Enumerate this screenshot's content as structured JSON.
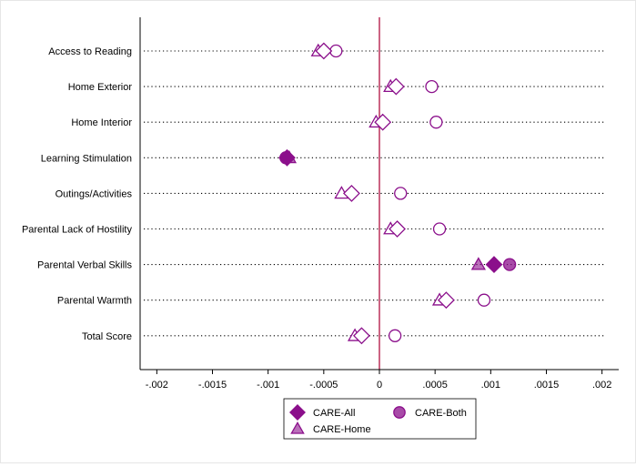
{
  "chart_data": {
    "type": "scatter",
    "categories": [
      "Access to Reading",
      "Home Exterior",
      "Home Interior",
      "Learning Stimulation",
      "Outings/Activities",
      "Parental Lack of Hostility",
      "Parental Verbal Skills",
      "Parental Warmth",
      "Total Score"
    ],
    "xlim": [
      -0.00215,
      0.00215
    ],
    "x_ticks": [
      -0.002,
      -0.0015,
      -0.001,
      -0.0005,
      0,
      0.0005,
      0.001,
      0.0015,
      0.002
    ],
    "x_tick_labels": [
      "-.002",
      "-.0015",
      "-.001",
      "-.0005",
      "0",
      ".0005",
      ".001",
      ".0015",
      ".002"
    ],
    "reference_line_x": 0,
    "grid": "dotted horizontal lines",
    "legend_position": "bottom",
    "series": [
      {
        "name": "CARE-All",
        "marker": "diamond",
        "values": [
          -0.0005,
          0.00015,
          3e-05,
          -0.00083,
          -0.00025,
          0.00016,
          0.00103,
          0.0006,
          -0.00016
        ],
        "filled": [
          false,
          false,
          false,
          true,
          false,
          false,
          true,
          false,
          false
        ]
      },
      {
        "name": "CARE-Both",
        "marker": "circle",
        "values": [
          -0.00039,
          0.00047,
          0.00051,
          -0.00084,
          0.00019,
          0.00054,
          0.00117,
          0.00094,
          0.00014
        ],
        "filled": [
          false,
          false,
          false,
          true,
          false,
          false,
          true,
          false,
          false
        ]
      },
      {
        "name": "CARE-Home",
        "marker": "triangle",
        "values": [
          -0.00055,
          0.0001,
          -3e-05,
          -0.00081,
          -0.00034,
          0.0001,
          0.00089,
          0.00054,
          -0.00022
        ],
        "filled": [
          false,
          false,
          false,
          true,
          false,
          false,
          true,
          false,
          false
        ]
      }
    ],
    "title": "",
    "xlabel": "",
    "ylabel": ""
  },
  "legend": {
    "items": [
      {
        "label": "CARE-All",
        "marker": "diamond"
      },
      {
        "label": "CARE-Both",
        "marker": "circle"
      },
      {
        "label": "CARE-Home",
        "marker": "triangle"
      }
    ]
  },
  "colors": {
    "marker": "#8b0f8b",
    "marker_hollow_fill": "#ffffff",
    "reference_line": "#b01040",
    "axis": "#000000",
    "grid": "#000000"
  }
}
